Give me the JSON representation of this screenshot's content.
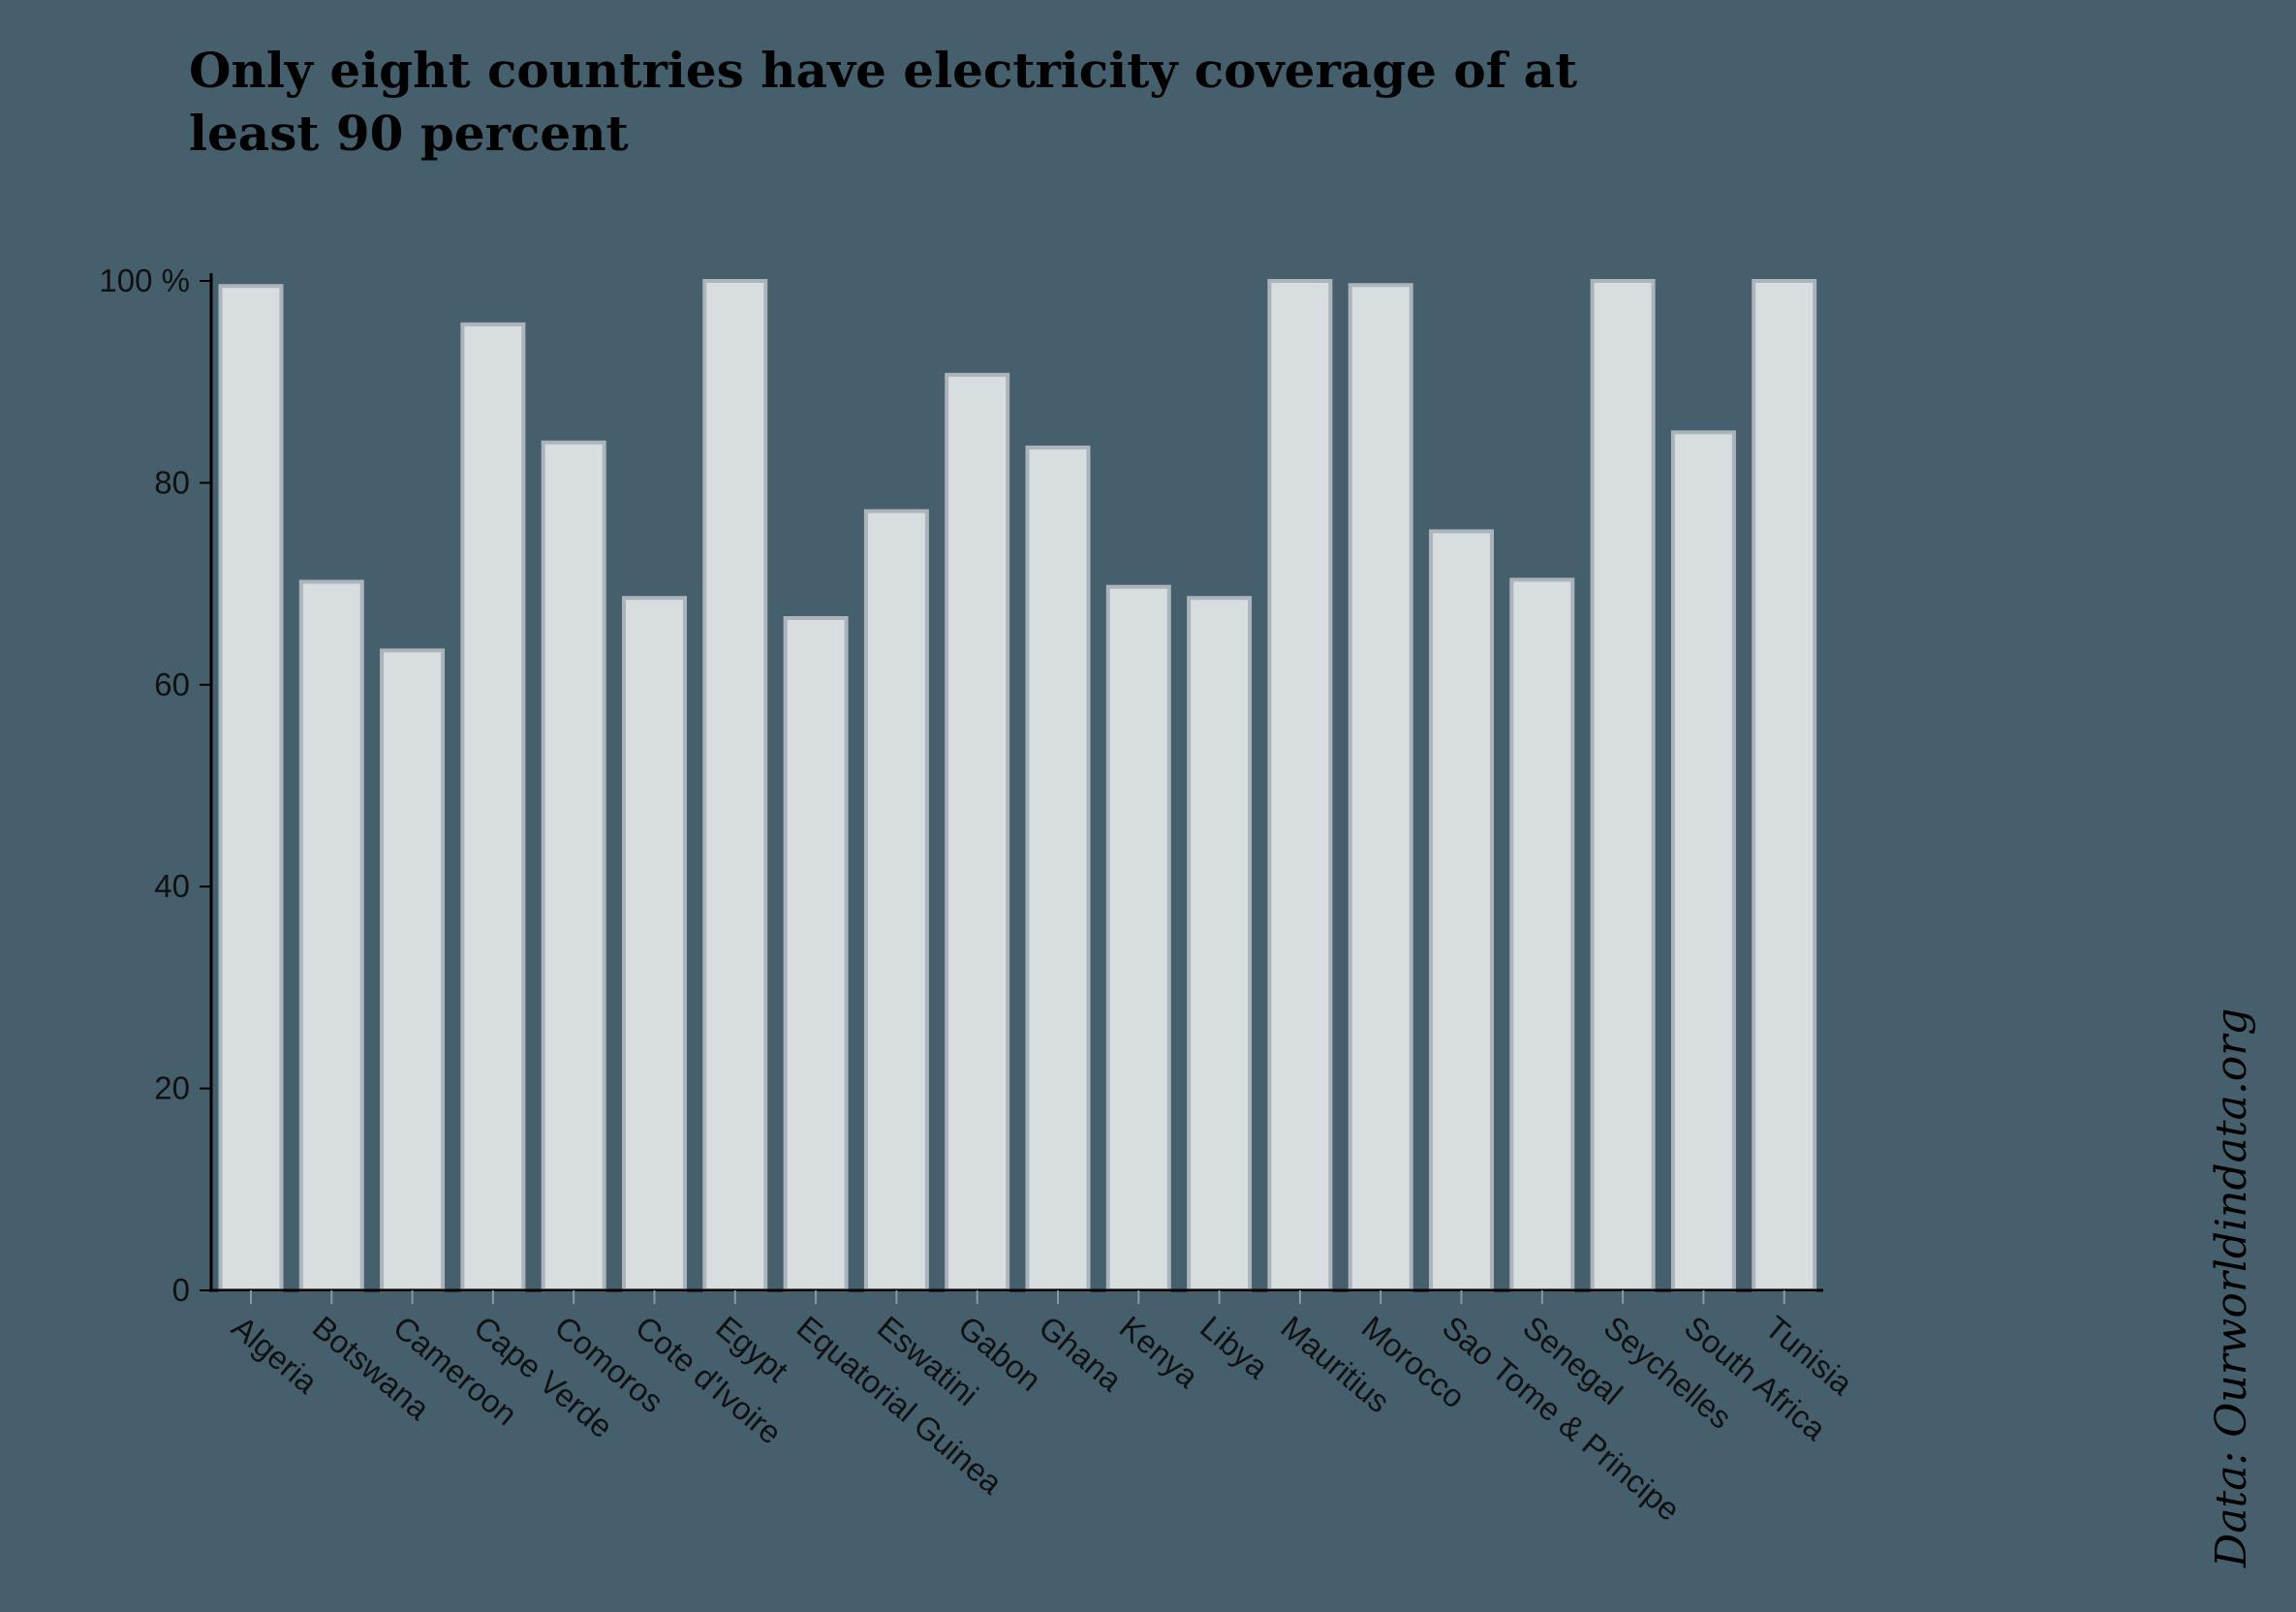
{
  "chart_data": {
    "type": "bar",
    "title": "Only eight countries have electricity coverage of at least 90 percent",
    "title_lines": [
      "Only eight countries have electricity coverage of at",
      "least 90 percent"
    ],
    "source": "Data: Ourworldindata.org",
    "xlabel": "",
    "ylabel": "",
    "ylim": [
      0,
      100
    ],
    "yticks": [
      0,
      20,
      40,
      60,
      80,
      100
    ],
    "ytick_labels": [
      "0",
      "20",
      "40",
      "60",
      "80",
      "100 %"
    ],
    "grid": false,
    "categories": [
      "Algeria",
      "Botswana",
      "Cameroon",
      "Cape Verde",
      "Comoros",
      "Cote d'Ivoire",
      "Egypt",
      "Equatorial Guinea",
      "Eswatini",
      "Gabon",
      "Ghana",
      "Kenya",
      "Libya",
      "Mauritius",
      "Morocco",
      "Sao Tome & Principe",
      "Senegal",
      "Seychelles",
      "South Africa",
      "Tunisia"
    ],
    "values": [
      99.5,
      70.2,
      63.4,
      95.7,
      84.0,
      68.6,
      100,
      66.6,
      77.2,
      90.7,
      83.5,
      69.7,
      68.6,
      100,
      99.6,
      75.2,
      70.4,
      100,
      85.0,
      100
    ]
  },
  "colors": {
    "background": "#455f6d",
    "bar_fill": "#d8dde0",
    "bar_stroke": "#aab4ba",
    "text": "#111111"
  }
}
